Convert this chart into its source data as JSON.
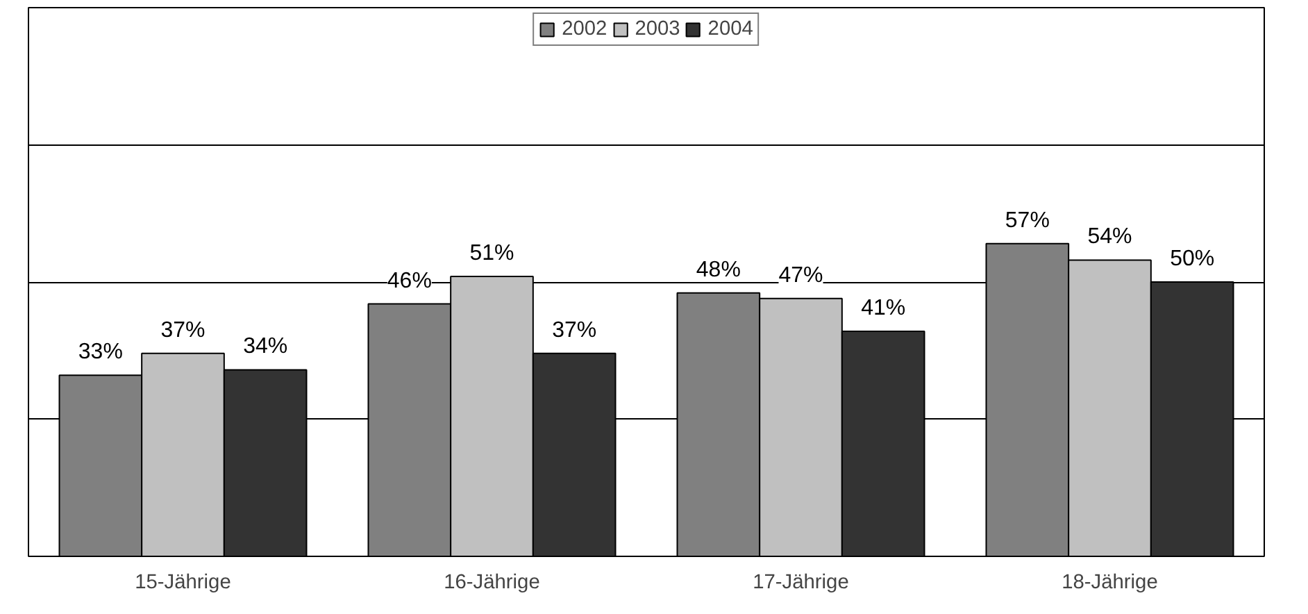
{
  "chart_data": {
    "type": "bar",
    "categories": [
      "15-Jährige",
      "16-Jährige",
      "17-Jährige",
      "18-Jährige"
    ],
    "series": [
      {
        "name": "2002",
        "color": "#808080",
        "values": [
          33,
          46,
          48,
          57
        ],
        "value_labels": [
          "33%",
          "46%",
          "48%",
          "57%"
        ]
      },
      {
        "name": "2003",
        "color": "#c0c0c0",
        "values": [
          37,
          51,
          47,
          54
        ],
        "value_labels": [
          "37%",
          "51%",
          "47%",
          "54%"
        ]
      },
      {
        "name": "2004",
        "color": "#333333",
        "values": [
          34,
          37,
          41,
          50
        ],
        "value_labels": [
          "34%",
          "37%",
          "41%",
          "50%"
        ]
      }
    ],
    "ylim": [
      0,
      100
    ],
    "yticks": [
      {
        "value": 0,
        "label": null
      },
      {
        "value": 25,
        "label": null
      },
      {
        "value": 50,
        "label": null
      },
      {
        "value": 75,
        "label": null
      },
      {
        "value": 100,
        "label": null
      }
    ],
    "grid": "y",
    "legend": "top",
    "tick_labels": "x"
  }
}
